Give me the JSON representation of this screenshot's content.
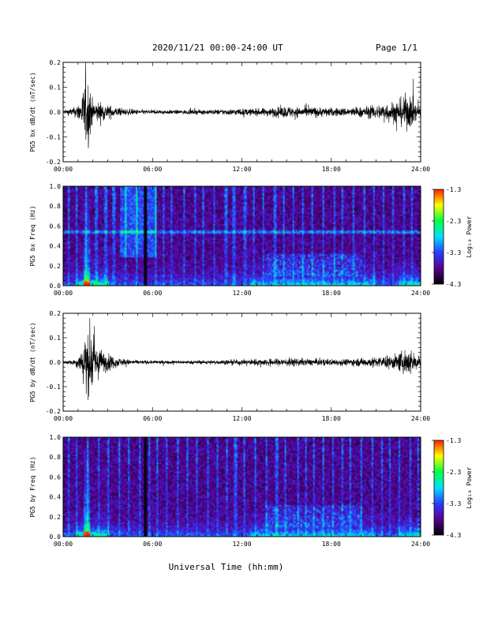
{
  "header": {
    "date_range": "2020/11/21  00:00-24:00 UT",
    "page": "Page 1/1"
  },
  "colors": {
    "background": "#ffffff",
    "trace": "#000000",
    "spectrogram_colormap": [
      "#000000",
      "#5a0090",
      "#2a3cff",
      "#00e0ff",
      "#00ff40",
      "#ffff00",
      "#ff2000"
    ]
  },
  "chart_data": [
    {
      "type": "line",
      "ylabel": "PG5 bx dB/dt (nT/sec)",
      "xlabel": "",
      "xlim": [
        0,
        24
      ],
      "ylim": [
        -0.2,
        0.2
      ],
      "x_ticks": [
        "00:00",
        "06:00",
        "12:00",
        "18:00",
        "24:00"
      ],
      "y_ticks": [
        "-0.2",
        "-0.1",
        "0.0",
        "0.1",
        "0.2"
      ],
      "y_tick_values": [
        -0.2,
        -0.1,
        0.0,
        0.1,
        0.2
      ],
      "envelope": {
        "x": [
          0,
          0.8,
          1.2,
          1.5,
          1.7,
          2.0,
          2.5,
          3.0,
          3.5,
          4,
          5,
          6,
          8,
          10,
          12,
          13,
          14,
          14.5,
          15,
          15.5,
          16,
          17,
          18,
          19,
          20,
          21,
          22,
          22.5,
          23,
          23.3,
          23.6,
          24
        ],
        "amplitude": [
          0.01,
          0.03,
          0.07,
          0.2,
          0.2,
          0.06,
          0.06,
          0.04,
          0.03,
          0.02,
          0.015,
          0.012,
          0.012,
          0.015,
          0.02,
          0.02,
          0.025,
          0.03,
          0.035,
          0.03,
          0.03,
          0.03,
          0.025,
          0.025,
          0.03,
          0.04,
          0.06,
          0.07,
          0.1,
          0.1,
          0.06,
          0.03
        ]
      }
    },
    {
      "type": "heatmap",
      "ylabel": "PG5 bx Freq (Hz)",
      "xlabel": "",
      "xlim": [
        0,
        24
      ],
      "ylim": [
        0,
        1.0
      ],
      "x_ticks": [
        "00:00",
        "06:00",
        "12:00",
        "18:00",
        "24:00"
      ],
      "y_ticks": [
        "0.0",
        "0.2",
        "0.4",
        "0.6",
        "0.8",
        "1.0"
      ],
      "y_tick_values": [
        0,
        0.2,
        0.4,
        0.6,
        0.8,
        1.0
      ],
      "colorbar": {
        "label": "Log₁₀ Power",
        "ticks": [
          "-1.3",
          "-2.3",
          "-3.3",
          "-4.3"
        ],
        "tick_values": [
          -1.3,
          -2.3,
          -3.3,
          -4.3
        ],
        "range": [
          -4.3,
          -1.3
        ]
      }
    },
    {
      "type": "line",
      "ylabel": "PG5 by dB/dt (nT/sec)",
      "xlabel": "",
      "xlim": [
        0,
        24
      ],
      "ylim": [
        -0.2,
        0.2
      ],
      "x_ticks": [
        "00:00",
        "06:00",
        "12:00",
        "18:00",
        "24:00"
      ],
      "y_ticks": [
        "-0.2",
        "-0.1",
        "0.0",
        "0.1",
        "0.2"
      ],
      "y_tick_values": [
        -0.2,
        -0.1,
        0.0,
        0.1,
        0.2
      ],
      "envelope": {
        "x": [
          0,
          0.8,
          1.2,
          1.5,
          1.8,
          2.2,
          2.8,
          3.2,
          4,
          5,
          6,
          8,
          10,
          12,
          13,
          14,
          15,
          15.5,
          16,
          17,
          18,
          19,
          20,
          21,
          22,
          22.5,
          23,
          23.3,
          23.6,
          24
        ],
        "amplitude": [
          0.008,
          0.02,
          0.06,
          0.2,
          0.2,
          0.1,
          0.06,
          0.04,
          0.02,
          0.012,
          0.01,
          0.01,
          0.012,
          0.015,
          0.02,
          0.02,
          0.025,
          0.025,
          0.02,
          0.02,
          0.02,
          0.02,
          0.025,
          0.03,
          0.04,
          0.05,
          0.08,
          0.08,
          0.05,
          0.03
        ]
      }
    },
    {
      "type": "heatmap",
      "ylabel": "PG5 by Freq (Hz)",
      "xlabel": "Universal Time (hh:mm)",
      "xlim": [
        0,
        24
      ],
      "ylim": [
        0,
        1.0
      ],
      "x_ticks": [
        "00:00",
        "06:00",
        "12:00",
        "18:00",
        "24:00"
      ],
      "y_ticks": [
        "0.0",
        "0.2",
        "0.4",
        "0.6",
        "0.8",
        "1.0"
      ],
      "y_tick_values": [
        0,
        0.2,
        0.4,
        0.6,
        0.8,
        1.0
      ],
      "colorbar": {
        "label": "Log₁₀ Power",
        "ticks": [
          "-1.3",
          "-2.3",
          "-3.3",
          "-4.3"
        ],
        "tick_values": [
          -1.3,
          -2.3,
          -3.3,
          -4.3
        ],
        "range": [
          -4.3,
          -1.3
        ]
      }
    }
  ]
}
